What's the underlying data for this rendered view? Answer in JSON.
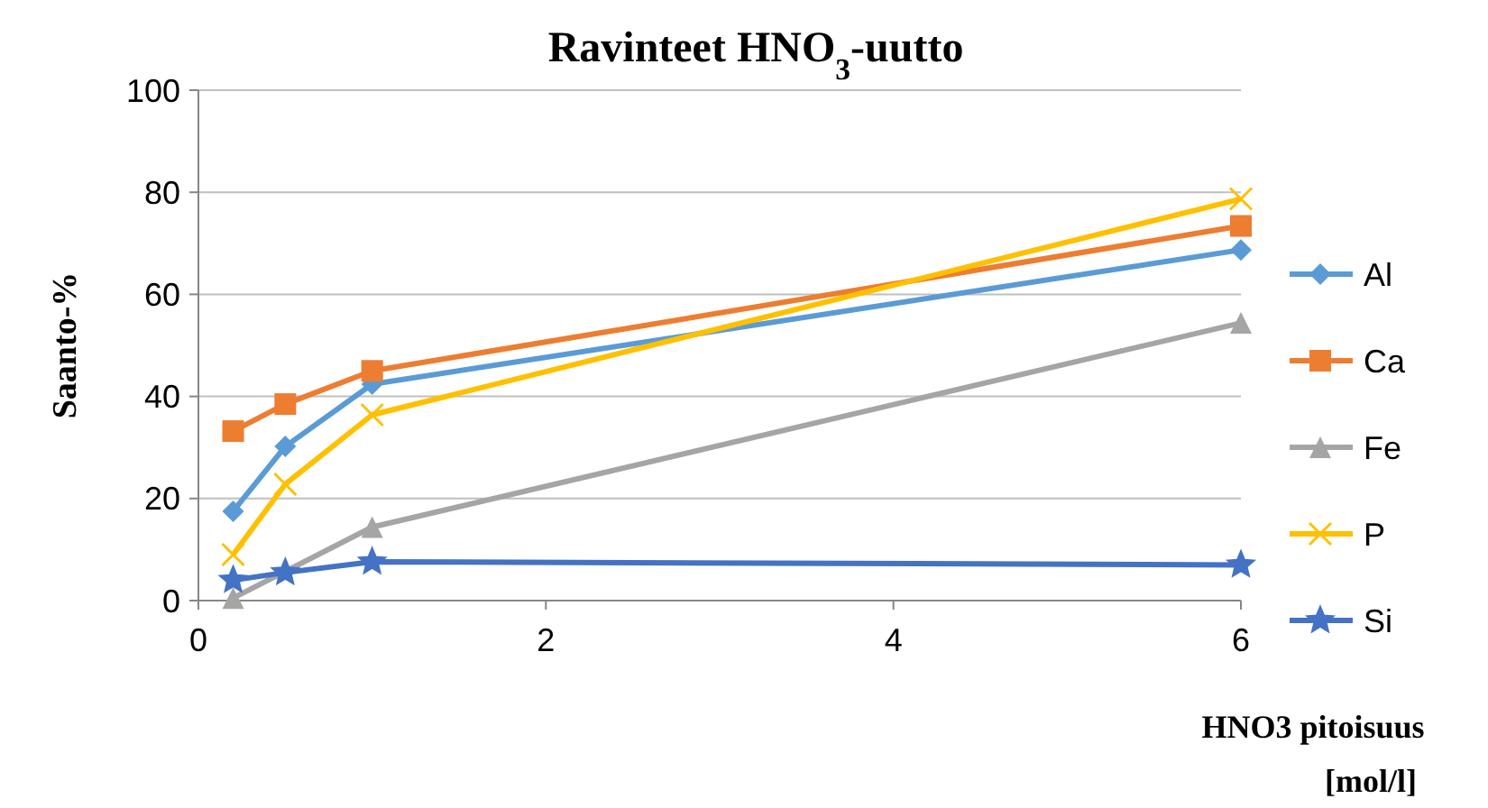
{
  "chart_data": {
    "type": "line",
    "title": "Ravinteet HNO$_{3}$-uutto",
    "xlabel": "HNO3 pitoisuus [mol/l]",
    "ylabel": "Saanto-%",
    "x": [
      0.2,
      0.5,
      1,
      6
    ],
    "series": [
      {
        "name": "Al",
        "color": "#5b9bd5",
        "marker": "diamond",
        "values": [
          17.5,
          30.2,
          42.4,
          68.7
        ]
      },
      {
        "name": "Ca",
        "color": "#ed7d31",
        "marker": "square",
        "values": [
          33.2,
          38.5,
          45,
          73.4
        ]
      },
      {
        "name": "Fe",
        "color": "#a5a5a5",
        "marker": "triangle",
        "values": [
          0.5,
          null,
          14.4,
          54.4
        ]
      },
      {
        "name": "P",
        "color": "#ffc000",
        "marker": "cross",
        "values": [
          9,
          22.8,
          36.4,
          78.7
        ]
      },
      {
        "name": "Si",
        "color": "#4472c4",
        "marker": "star",
        "values": [
          4,
          5.5,
          7.6,
          7
        ]
      }
    ],
    "xlim": [
      0,
      6
    ],
    "xticks": [
      0,
      2,
      4,
      6
    ],
    "ylim": [
      0,
      100
    ],
    "yticks": [
      0,
      20,
      40,
      60,
      80,
      100
    ],
    "grid": "y",
    "legend": "right"
  }
}
